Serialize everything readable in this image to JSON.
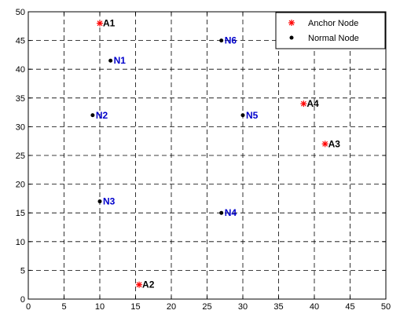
{
  "chart_data": {
    "type": "scatter",
    "title": "",
    "xlabel": "",
    "ylabel": "",
    "xlim": [
      0,
      50
    ],
    "ylim": [
      0,
      50
    ],
    "xticks": [
      0,
      5,
      10,
      15,
      20,
      25,
      30,
      35,
      40,
      45,
      50
    ],
    "yticks": [
      0,
      5,
      10,
      15,
      20,
      25,
      30,
      35,
      40,
      45,
      50
    ],
    "grid": true,
    "legend_position": "top-right",
    "series": [
      {
        "name": "Anchor Node",
        "marker": "asterisk",
        "color": "#ff0000",
        "label_color": "#000000",
        "points": [
          {
            "label": "A1",
            "x": 10,
            "y": 48
          },
          {
            "label": "A2",
            "x": 15.5,
            "y": 2.5
          },
          {
            "label": "A3",
            "x": 41.5,
            "y": 27
          },
          {
            "label": "A4",
            "x": 38.5,
            "y": 34
          }
        ]
      },
      {
        "name": "Normal Node",
        "marker": "dot",
        "color": "#000000",
        "label_color": "#0000cc",
        "points": [
          {
            "label": "N1",
            "x": 11.5,
            "y": 41.5
          },
          {
            "label": "N2",
            "x": 9,
            "y": 32
          },
          {
            "label": "N3",
            "x": 10,
            "y": 17
          },
          {
            "label": "N4",
            "x": 27,
            "y": 15
          },
          {
            "label": "N5",
            "x": 30,
            "y": 32
          },
          {
            "label": "N6",
            "x": 27,
            "y": 45
          }
        ]
      }
    ]
  }
}
